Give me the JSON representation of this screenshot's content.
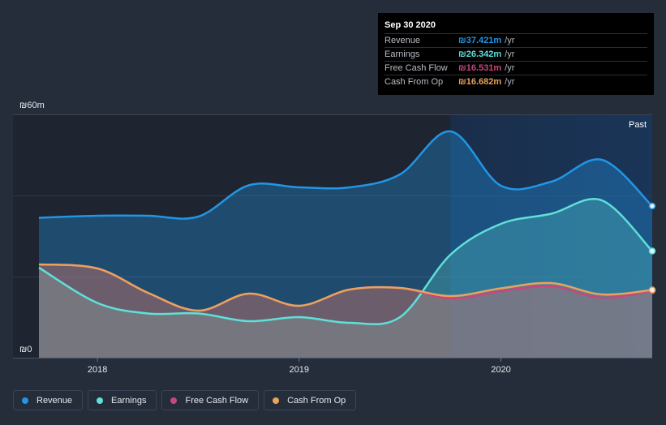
{
  "chart_data": {
    "type": "area",
    "currency_symbol": "₪",
    "y_max_label": "₪60m",
    "y_min_label": "₪0",
    "ylim": [
      0,
      60
    ],
    "xlim": [
      2017.71,
      2020.75
    ],
    "past_start": 2019.75,
    "past_label": "Past",
    "x_ticks": [
      {
        "value": 2018,
        "label": "2018"
      },
      {
        "value": 2019,
        "label": "2019"
      },
      {
        "value": 2020,
        "label": "2020"
      }
    ],
    "series": [
      {
        "name": "Revenue",
        "color": "#2196e6",
        "points": [
          [
            2017.71,
            34.5
          ],
          [
            2018.0,
            35.0
          ],
          [
            2018.25,
            35.0
          ],
          [
            2018.5,
            34.8
          ],
          [
            2018.75,
            42.5
          ],
          [
            2019.0,
            42.0
          ],
          [
            2019.25,
            42.0
          ],
          [
            2019.5,
            45.2
          ],
          [
            2019.75,
            55.8
          ],
          [
            2020.0,
            42.4
          ],
          [
            2020.25,
            43.4
          ],
          [
            2020.5,
            48.8
          ],
          [
            2020.75,
            37.4
          ]
        ]
      },
      {
        "name": "Earnings",
        "color": "#5fe0d8",
        "points": [
          [
            2017.71,
            22.2
          ],
          [
            2018.0,
            13.5
          ],
          [
            2018.25,
            10.9
          ],
          [
            2018.5,
            10.9
          ],
          [
            2018.75,
            9.0
          ],
          [
            2019.0,
            10.0
          ],
          [
            2019.25,
            8.6
          ],
          [
            2019.5,
            10.0
          ],
          [
            2019.75,
            25.4
          ],
          [
            2020.0,
            33.0
          ],
          [
            2020.25,
            35.5
          ],
          [
            2020.5,
            38.8
          ],
          [
            2020.75,
            26.3
          ]
        ]
      },
      {
        "name": "Free Cash Flow",
        "color": "#c8467e",
        "points": [
          [
            2017.71,
            23.0
          ],
          [
            2018.0,
            22.0
          ],
          [
            2018.25,
            16.0
          ],
          [
            2018.5,
            11.6
          ],
          [
            2018.75,
            15.8
          ],
          [
            2019.0,
            12.8
          ],
          [
            2019.25,
            16.8
          ],
          [
            2019.5,
            17.2
          ],
          [
            2019.75,
            14.6
          ],
          [
            2020.0,
            16.4
          ],
          [
            2020.25,
            17.6
          ],
          [
            2020.5,
            14.8
          ],
          [
            2020.75,
            16.5
          ]
        ]
      },
      {
        "name": "Cash From Op",
        "color": "#e9a35c",
        "points": [
          [
            2017.71,
            23.0
          ],
          [
            2018.0,
            22.0
          ],
          [
            2018.25,
            16.0
          ],
          [
            2018.5,
            11.6
          ],
          [
            2018.75,
            15.8
          ],
          [
            2019.0,
            12.8
          ],
          [
            2019.25,
            16.8
          ],
          [
            2019.5,
            17.2
          ],
          [
            2019.75,
            15.2
          ],
          [
            2020.0,
            17.1
          ],
          [
            2020.25,
            18.4
          ],
          [
            2020.5,
            15.6
          ],
          [
            2020.75,
            16.7
          ]
        ]
      }
    ]
  },
  "tooltip": {
    "date": "Sep 30 2020",
    "rows": [
      {
        "name": "Revenue",
        "value": "₪37.421m",
        "unit": "/yr",
        "color": "#2196e6"
      },
      {
        "name": "Earnings",
        "value": "₪26.342m",
        "unit": "/yr",
        "color": "#5fe0d8"
      },
      {
        "name": "Free Cash Flow",
        "value": "₪16.531m",
        "unit": "/yr",
        "color": "#c8467e"
      },
      {
        "name": "Cash From Op",
        "value": "₪16.682m",
        "unit": "/yr",
        "color": "#e9a35c"
      }
    ]
  },
  "legend": [
    {
      "label": "Revenue",
      "color": "#2196e6"
    },
    {
      "label": "Earnings",
      "color": "#5fe0d8"
    },
    {
      "label": "Free Cash Flow",
      "color": "#c8467e"
    },
    {
      "label": "Cash From Op",
      "color": "#e9a35c"
    }
  ]
}
